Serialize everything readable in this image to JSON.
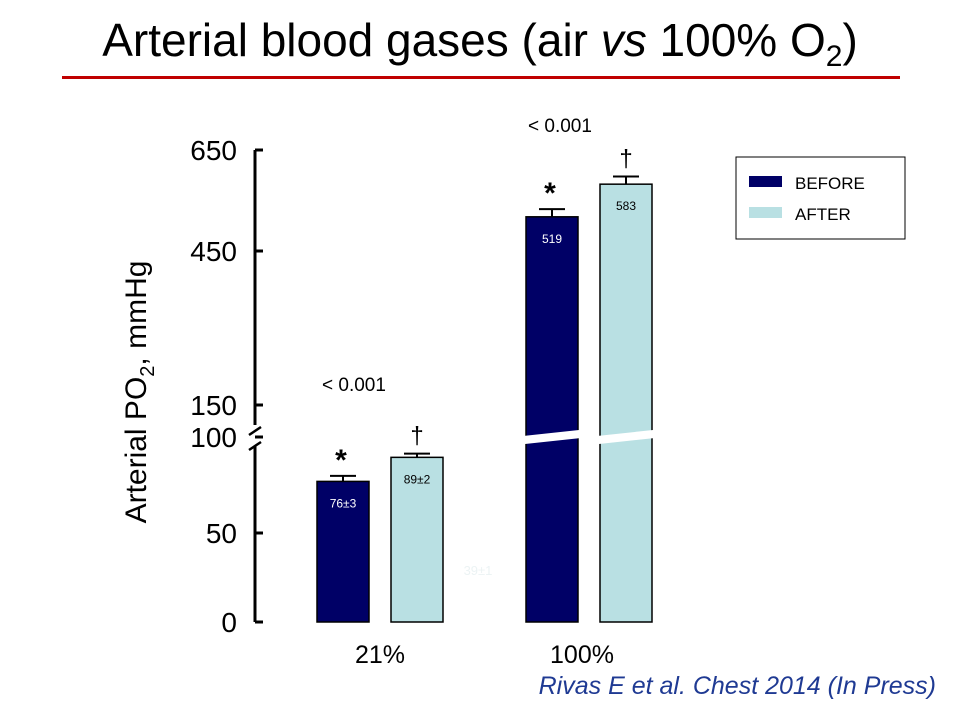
{
  "title": {
    "main": "Arterial blood gases (air ",
    "italic": "vs",
    "rest": " 100% O",
    "sub": "2",
    "close": ")"
  },
  "citation": "Rivas E et al. Chest 2014 (In Press)",
  "colors": {
    "before": "#000066",
    "after": "#b9e0e3",
    "title_rule": "#c00000",
    "citation": "#1f3a93"
  },
  "chart_data": {
    "type": "bar",
    "ylabel": {
      "main": "Arterial PO",
      "sub": "2",
      "rest": ", mmHg"
    },
    "y_axis": {
      "broken": true,
      "lower_segment": {
        "range": [
          0,
          100
        ],
        "ticks": [
          "0",
          "50",
          "100"
        ]
      },
      "upper_segment": {
        "range": [
          150,
          650
        ],
        "ticks": [
          "150",
          "450",
          "650"
        ]
      }
    },
    "categories": [
      "21%",
      "100%"
    ],
    "series": [
      {
        "name": "BEFORE",
        "values": [
          76,
          519
        ],
        "errors": [
          3,
          15
        ],
        "labels": [
          "76±3",
          "519"
        ]
      },
      {
        "name": "AFTER",
        "values": [
          89,
          583
        ],
        "errors": [
          2,
          15
        ],
        "labels": [
          "89±2",
          "583"
        ]
      }
    ],
    "significance": [
      {
        "p": "< 0.001",
        "before_marker": "*",
        "after_marker": "†"
      },
      {
        "p": "< 0.001",
        "before_marker": "*",
        "after_marker": "†"
      }
    ],
    "faint_annotation": "39±1",
    "legend": {
      "position": "top-right",
      "entries": [
        "BEFORE",
        "AFTER"
      ]
    }
  }
}
